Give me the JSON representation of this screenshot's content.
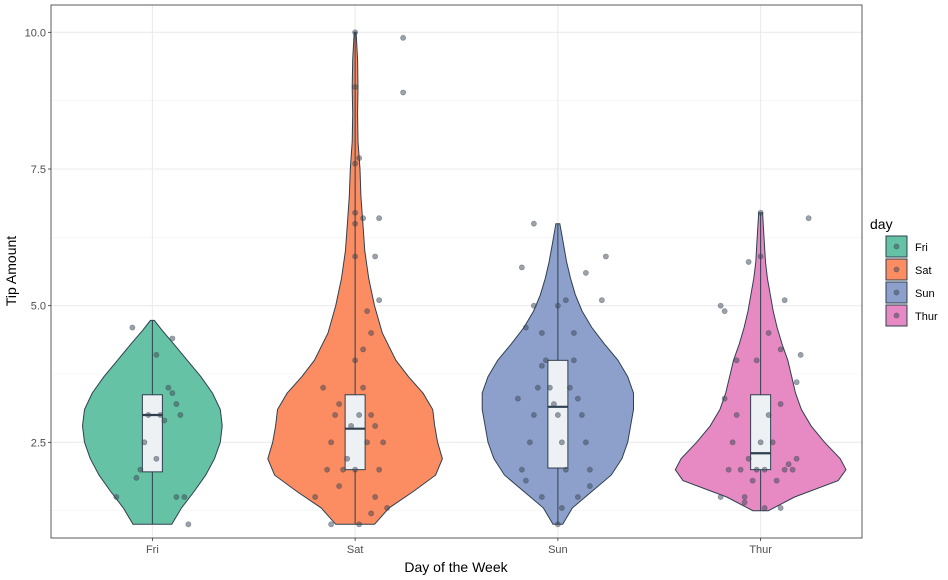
{
  "chart_data": {
    "type": "violin",
    "xlabel": "Day of the Week",
    "ylabel": "Tip Amount",
    "ylim": [
      0.75,
      10.5
    ],
    "yticks": [
      2.5,
      5.0,
      7.5,
      10.0
    ],
    "ytick_labels": [
      "2.5",
      "5.0",
      "7.5",
      "10.0"
    ],
    "grid": true,
    "legend": {
      "title": "day",
      "placement": "right"
    },
    "categories": [
      "Fri",
      "Sat",
      "Sun",
      "Thur"
    ],
    "series": [
      {
        "name": "Fri",
        "color": "#66C2A5",
        "min": 1.0,
        "q1": 1.96,
        "median": 3.0,
        "q3": 3.37,
        "max": 4.73,
        "density": [
          [
            1.0,
            0.2
          ],
          [
            1.3,
            0.3
          ],
          [
            1.6,
            0.43
          ],
          [
            1.9,
            0.55
          ],
          [
            2.2,
            0.64
          ],
          [
            2.5,
            0.7
          ],
          [
            2.8,
            0.72
          ],
          [
            3.1,
            0.7
          ],
          [
            3.4,
            0.62
          ],
          [
            3.7,
            0.5
          ],
          [
            4.0,
            0.36
          ],
          [
            4.3,
            0.22
          ],
          [
            4.55,
            0.1
          ],
          [
            4.73,
            0.02
          ]
        ],
        "points": [
          [
            -0.45,
            1.5
          ],
          [
            -0.2,
            1.85
          ],
          [
            -0.15,
            2.0
          ],
          [
            -0.1,
            2.5
          ],
          [
            0.05,
            2.2
          ],
          [
            0.1,
            3.0
          ],
          [
            0.15,
            2.9
          ],
          [
            0.2,
            3.5
          ],
          [
            0.25,
            3.4
          ],
          [
            0.3,
            3.2
          ],
          [
            0.35,
            3.0
          ],
          [
            0.05,
            4.1
          ],
          [
            -0.25,
            4.6
          ],
          [
            0.25,
            4.4
          ],
          [
            0.4,
            1.5
          ],
          [
            0.45,
            1.0
          ],
          [
            -0.05,
            3.0
          ],
          [
            0.3,
            1.5
          ]
        ]
      },
      {
        "name": "Sat",
        "color": "#FC8D62",
        "min": 1.0,
        "q1": 2.0,
        "median": 2.75,
        "q3": 3.37,
        "max": 10.0,
        "density": [
          [
            1.0,
            0.2
          ],
          [
            1.3,
            0.35
          ],
          [
            1.6,
            0.6
          ],
          [
            1.9,
            0.83
          ],
          [
            2.2,
            0.9
          ],
          [
            2.5,
            0.85
          ],
          [
            2.8,
            0.82
          ],
          [
            3.1,
            0.8
          ],
          [
            3.4,
            0.7
          ],
          [
            3.7,
            0.55
          ],
          [
            4.0,
            0.42
          ],
          [
            4.5,
            0.28
          ],
          [
            5.0,
            0.2
          ],
          [
            5.5,
            0.14
          ],
          [
            6.0,
            0.1
          ],
          [
            6.5,
            0.08
          ],
          [
            7.0,
            0.06
          ],
          [
            7.5,
            0.05
          ],
          [
            8.0,
            0.03
          ],
          [
            8.5,
            0.025
          ],
          [
            9.0,
            0.03
          ],
          [
            9.5,
            0.025
          ],
          [
            10.0,
            0.01
          ]
        ],
        "points": [
          [
            -0.5,
            1.5
          ],
          [
            -0.35,
            2.0
          ],
          [
            -0.3,
            2.5
          ],
          [
            -0.25,
            3.0
          ],
          [
            -0.2,
            3.2
          ],
          [
            -0.15,
            2.0
          ],
          [
            -0.1,
            2.2
          ],
          [
            -0.05,
            2.8
          ],
          [
            0.0,
            2.0
          ],
          [
            0.05,
            3.0
          ],
          [
            0.1,
            3.5
          ],
          [
            0.15,
            2.5
          ],
          [
            0.2,
            3.0
          ],
          [
            0.25,
            1.5
          ],
          [
            0.3,
            2.0
          ],
          [
            0.35,
            2.5
          ],
          [
            0.4,
            1.3
          ],
          [
            -0.4,
            3.5
          ],
          [
            0.0,
            4.0
          ],
          [
            0.1,
            4.2
          ],
          [
            0.2,
            4.5
          ],
          [
            0.3,
            5.1
          ],
          [
            0.15,
            4.9
          ],
          [
            0.0,
            5.9
          ],
          [
            0.0,
            6.5
          ],
          [
            0.0,
            6.7
          ],
          [
            0.05,
            7.7
          ],
          [
            0.0,
            7.6
          ],
          [
            0.0,
            9.0
          ],
          [
            0.0,
            10.0
          ],
          [
            0.6,
            9.9
          ],
          [
            0.6,
            8.9
          ],
          [
            0.3,
            6.6
          ],
          [
            0.25,
            5.9
          ],
          [
            0.1,
            6.6
          ],
          [
            -0.3,
            1.0
          ],
          [
            0.2,
            1.2
          ],
          [
            0.05,
            1.0
          ],
          [
            -0.2,
            1.7
          ],
          [
            0.25,
            2.8
          ]
        ]
      },
      {
        "name": "Sun",
        "color": "#8DA0CB",
        "min": 1.0,
        "q1": 2.03,
        "median": 3.15,
        "q3": 4.0,
        "max": 6.5,
        "density": [
          [
            1.0,
            0.05
          ],
          [
            1.3,
            0.15
          ],
          [
            1.6,
            0.35
          ],
          [
            1.9,
            0.55
          ],
          [
            2.2,
            0.66
          ],
          [
            2.5,
            0.72
          ],
          [
            2.8,
            0.75
          ],
          [
            3.1,
            0.78
          ],
          [
            3.4,
            0.78
          ],
          [
            3.7,
            0.72
          ],
          [
            4.0,
            0.62
          ],
          [
            4.3,
            0.48
          ],
          [
            4.6,
            0.35
          ],
          [
            4.9,
            0.25
          ],
          [
            5.2,
            0.18
          ],
          [
            5.5,
            0.13
          ],
          [
            5.8,
            0.09
          ],
          [
            6.1,
            0.06
          ],
          [
            6.3,
            0.04
          ],
          [
            6.5,
            0.02
          ]
        ],
        "points": [
          [
            -0.5,
            3.3
          ],
          [
            -0.45,
            2.0
          ],
          [
            -0.4,
            1.8
          ],
          [
            -0.35,
            2.5
          ],
          [
            -0.3,
            3.0
          ],
          [
            -0.25,
            3.5
          ],
          [
            -0.2,
            3.9
          ],
          [
            -0.15,
            4.0
          ],
          [
            -0.1,
            3.5
          ],
          [
            -0.05,
            3.2
          ],
          [
            0.0,
            3.0
          ],
          [
            0.05,
            2.5
          ],
          [
            0.1,
            2.0
          ],
          [
            0.15,
            3.5
          ],
          [
            0.2,
            4.0
          ],
          [
            0.25,
            3.3
          ],
          [
            0.3,
            3.0
          ],
          [
            0.35,
            2.5
          ],
          [
            0.4,
            2.0
          ],
          [
            -0.3,
            5.0
          ],
          [
            -0.2,
            4.5
          ],
          [
            0.0,
            5.0
          ],
          [
            0.2,
            4.5
          ],
          [
            0.1,
            5.1
          ],
          [
            -0.45,
            5.7
          ],
          [
            -0.3,
            6.5
          ],
          [
            0.6,
            5.9
          ],
          [
            0.35,
            5.6
          ],
          [
            0.55,
            5.1
          ],
          [
            0.0,
            1.0
          ],
          [
            -0.2,
            1.5
          ],
          [
            0.25,
            1.5
          ],
          [
            0.4,
            1.7
          ],
          [
            0.05,
            1.3
          ],
          [
            -0.4,
            4.6
          ]
        ]
      },
      {
        "name": "Thur",
        "color": "#E78AC3",
        "min": 1.25,
        "q1": 2.0,
        "median": 2.3,
        "q3": 3.37,
        "max": 6.7,
        "density": [
          [
            1.25,
            0.08
          ],
          [
            1.5,
            0.35
          ],
          [
            1.8,
            0.8
          ],
          [
            2.0,
            0.88
          ],
          [
            2.2,
            0.82
          ],
          [
            2.5,
            0.66
          ],
          [
            2.8,
            0.52
          ],
          [
            3.1,
            0.42
          ],
          [
            3.4,
            0.36
          ],
          [
            3.7,
            0.32
          ],
          [
            4.0,
            0.28
          ],
          [
            4.3,
            0.22
          ],
          [
            4.6,
            0.17
          ],
          [
            4.9,
            0.13
          ],
          [
            5.2,
            0.1
          ],
          [
            5.5,
            0.07
          ],
          [
            5.8,
            0.05
          ],
          [
            6.1,
            0.04
          ],
          [
            6.4,
            0.03
          ],
          [
            6.7,
            0.02
          ]
        ],
        "points": [
          [
            -0.5,
            1.5
          ],
          [
            -0.4,
            2.0
          ],
          [
            -0.35,
            2.5
          ],
          [
            -0.3,
            3.0
          ],
          [
            -0.25,
            2.0
          ],
          [
            -0.2,
            1.5
          ],
          [
            -0.15,
            2.2
          ],
          [
            -0.1,
            1.8
          ],
          [
            -0.05,
            2.0
          ],
          [
            0.0,
            2.5
          ],
          [
            0.05,
            2.0
          ],
          [
            0.1,
            3.0
          ],
          [
            0.15,
            2.5
          ],
          [
            0.2,
            1.8
          ],
          [
            0.25,
            3.2
          ],
          [
            0.3,
            2.0
          ],
          [
            0.35,
            2.1
          ],
          [
            0.4,
            2.0
          ],
          [
            0.45,
            2.2
          ],
          [
            -0.45,
            3.3
          ],
          [
            -0.3,
            4.0
          ],
          [
            -0.05,
            4.0
          ],
          [
            0.1,
            4.5
          ],
          [
            0.25,
            4.2
          ],
          [
            0.3,
            5.1
          ],
          [
            -0.5,
            5.0
          ],
          [
            -0.45,
            4.9
          ],
          [
            -0.15,
            5.8
          ],
          [
            0.0,
            5.9
          ],
          [
            0.0,
            6.7
          ],
          [
            0.6,
            6.6
          ],
          [
            0.05,
            1.3
          ],
          [
            0.25,
            1.3
          ],
          [
            -0.2,
            1.4
          ],
          [
            0.5,
            4.1
          ],
          [
            0.45,
            3.6
          ]
        ]
      }
    ]
  }
}
